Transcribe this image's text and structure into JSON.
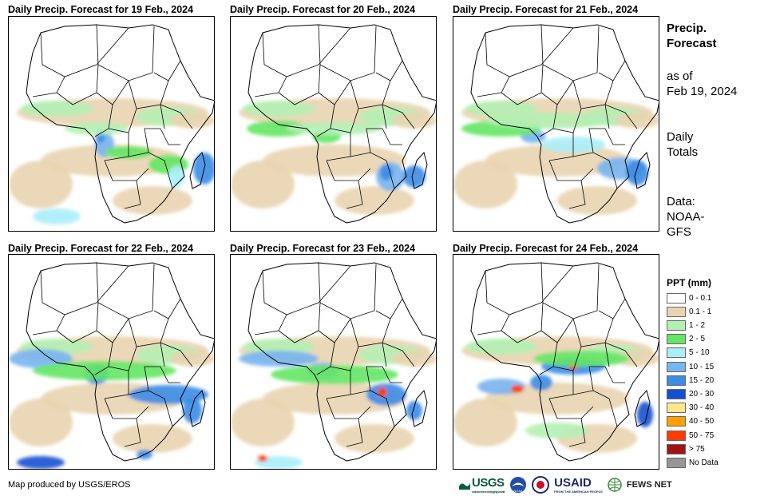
{
  "panels": [
    {
      "title": "Daily Precip. Forecast for 19 Feb., 2024",
      "day": 0
    },
    {
      "title": "Daily Precip. Forecast for 20 Feb., 2024",
      "day": 1
    },
    {
      "title": "Daily Precip. Forecast for 21 Feb., 2024",
      "day": 2
    },
    {
      "title": "Daily Precip. Forecast for 22 Feb., 2024",
      "day": 3
    },
    {
      "title": "Daily Precip. Forecast for 23 Feb., 2024",
      "day": 4
    },
    {
      "title": "Daily Precip. Forecast for 24 Feb., 2024",
      "day": 5
    }
  ],
  "sidebar": {
    "title_line1": "Precip.",
    "title_line2": "Forecast",
    "asof_line1": "as of",
    "asof_line2": "Feb 19, 2024",
    "daily_line1": "Daily",
    "daily_line2": "Totals",
    "data_line1": "Data:",
    "data_line2": "NOAA-",
    "data_line3": "GFS"
  },
  "legend": {
    "title": "PPT (mm)",
    "items": [
      {
        "label": "0 - 0.1",
        "color": "#ffffff"
      },
      {
        "label": "0.1 - 1",
        "color": "#e8d4b0"
      },
      {
        "label": "1 - 2",
        "color": "#b4f0b4"
      },
      {
        "label": "2 - 5",
        "color": "#64e664"
      },
      {
        "label": "5 - 10",
        "color": "#aaeef8"
      },
      {
        "label": "10 - 15",
        "color": "#78b4f0"
      },
      {
        "label": "15 - 20",
        "color": "#3c8ce6"
      },
      {
        "label": "20 - 30",
        "color": "#1450d2"
      },
      {
        "label": "30 - 40",
        "color": "#ffe68c"
      },
      {
        "label": "40 - 50",
        "color": "#ffa000"
      },
      {
        "label": "50 - 75",
        "color": "#ff3c00"
      },
      {
        "label": "> 75",
        "color": "#a01414"
      },
      {
        "label": "No Data",
        "color": "#969696"
      }
    ]
  },
  "footer": {
    "credit": "Map produced by USGS/EROS",
    "usgs": "USGS",
    "usgs_tagline": "science for a changing world",
    "noaa": "NOAA",
    "usaid": "USAID",
    "usaid_tagline": "FROM THE AMERICAN PEOPLE",
    "fews": "FEWS NET"
  }
}
